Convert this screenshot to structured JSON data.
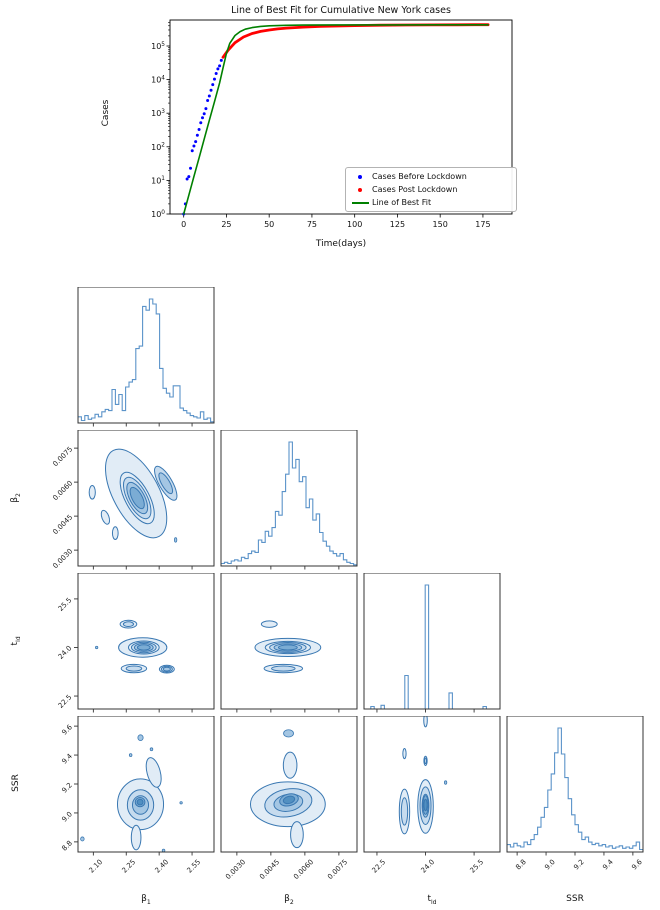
{
  "chart_data": [
    {
      "type": "line",
      "title": "Line of Best Fit for Cumulative New York cases",
      "xlabel": "Time(days)",
      "ylabel": "Cases",
      "x_ticks": [
        0,
        25,
        50,
        75,
        100,
        125,
        150,
        175
      ],
      "y_scale": "log",
      "y_tick_exponents": [
        0,
        1,
        2,
        3,
        4,
        5
      ],
      "xlim": [
        -8,
        192
      ],
      "ylim_log_decades": [
        0,
        5.77
      ],
      "legend": {
        "position": "lower right",
        "items": [
          {
            "label": "Cases Before Lockdown",
            "color": "#0000ff",
            "marker": "dot"
          },
          {
            "label": "Cases Post Lockdown",
            "color": "#ff0000",
            "marker": "dot"
          },
          {
            "label": "Line of Best Fit",
            "color": "#008000",
            "marker": "line"
          }
        ]
      },
      "series": [
        {
          "name": "Cases Before Lockdown",
          "style": "scatter",
          "color": "#0000ff",
          "x": [
            0,
            1,
            2,
            3,
            4,
            5,
            6,
            7,
            8,
            9,
            10,
            11,
            12,
            13,
            14,
            15,
            16,
            17,
            18,
            19,
            20,
            21,
            22
          ],
          "y": [
            1,
            2,
            11,
            13,
            23,
            76,
            106,
            142,
            221,
            328,
            521,
            733,
            967,
            1374,
            2382,
            3254,
            4812,
            7102,
            10356,
            15168,
            20875,
            25665,
            37258
          ]
        },
        {
          "name": "Cases Post Lockdown",
          "style": "scatter-dense",
          "color": "#ff0000",
          "x": [
            23,
            26,
            30,
            35,
            40,
            45,
            50,
            55,
            60,
            70,
            80,
            90,
            100,
            115,
            130,
            145,
            160,
            170,
            178
          ],
          "y": [
            46000,
            75000,
            125000,
            185000,
            235000,
            272000,
            300000,
            322000,
            340000,
            365000,
            382000,
            395000,
            405000,
            415000,
            421000,
            425000,
            428000,
            430000,
            431000
          ]
        },
        {
          "name": "Line of Best Fit",
          "style": "line",
          "color": "#008000",
          "x": [
            0,
            3,
            6,
            9,
            12,
            15,
            18,
            21,
            23,
            25,
            27,
            30,
            33,
            36,
            40,
            45,
            50,
            60,
            70,
            90,
            120,
            150,
            178
          ],
          "y": [
            1,
            3.6,
            13,
            47,
            170,
            610,
            2200,
            8000,
            22000,
            60000,
            120000,
            205000,
            268000,
            316000,
            352000,
            382000,
            398000,
            413000,
            419000,
            424000,
            426000,
            427000,
            427000
          ]
        }
      ]
    },
    {
      "type": "corner",
      "parameters": [
        {
          "label_base": "β",
          "label_sub": "1",
          "ticks": [
            "2.10",
            "2.25",
            "2.40",
            "2.55"
          ],
          "tick_values": [
            2.1,
            2.25,
            2.4,
            2.55
          ],
          "range": [
            2.03,
            2.65
          ]
        },
        {
          "label_base": "β",
          "label_sub": "2",
          "ticks": [
            "0.0030",
            "0.0045",
            "0.0060",
            "0.0075"
          ],
          "tick_values": [
            0.003,
            0.0045,
            0.006,
            0.0075
          ],
          "range": [
            0.0023,
            0.0083
          ]
        },
        {
          "label_base": "t",
          "label_sub": "ld",
          "ticks": [
            "22.5",
            "24.0",
            "25.5"
          ],
          "tick_values": [
            22.5,
            24.0,
            25.5
          ],
          "range": [
            22.1,
            26.3
          ]
        },
        {
          "label_base": "SSR",
          "label_sub": "",
          "ticks": [
            "8.8",
            "9.0",
            "9.2",
            "9.4",
            "9.6"
          ],
          "tick_values": [
            8.8,
            9.0,
            9.2,
            9.4,
            9.6
          ],
          "range": [
            8.73,
            9.67
          ]
        }
      ],
      "histograms": {
        "b1": [
          0.05,
          0.02,
          0.06,
          0.03,
          0.04,
          0.07,
          0.05,
          0.09,
          0.11,
          0.1,
          0.27,
          0.15,
          0.23,
          0.1,
          0.29,
          0.33,
          0.35,
          0.6,
          0.62,
          0.94,
          0.91,
          1.0,
          0.96,
          0.88,
          0.44,
          0.28,
          0.24,
          0.21,
          0.3,
          0.3,
          0.12,
          0.1,
          0.08,
          0.06,
          0.05,
          0.04,
          0.09,
          0.03,
          0.04,
          0.01
        ],
        "b2": [
          0.02,
          0.03,
          0.02,
          0.04,
          0.05,
          0.04,
          0.07,
          0.06,
          0.1,
          0.12,
          0.11,
          0.21,
          0.19,
          0.28,
          0.24,
          0.31,
          0.44,
          0.41,
          0.6,
          0.74,
          1.0,
          0.79,
          0.86,
          0.68,
          0.72,
          0.47,
          0.54,
          0.37,
          0.42,
          0.27,
          0.2,
          0.16,
          0.12,
          0.1,
          0.08,
          0.1,
          0.05,
          0.03,
          0.02,
          0.01
        ],
        "tld": [
          0,
          0,
          0.02,
          0,
          0,
          0.03,
          0,
          0,
          0,
          0,
          0,
          0,
          0.27,
          0,
          0,
          0,
          0,
          0,
          1.0,
          0,
          0,
          0,
          0,
          0,
          0,
          0.13,
          0,
          0,
          0,
          0,
          0,
          0,
          0,
          0,
          0,
          0.02,
          0,
          0,
          0,
          0
        ],
        "ssr": [
          0.06,
          0.04,
          0.07,
          0.05,
          0.04,
          0.08,
          0.06,
          0.1,
          0.14,
          0.2,
          0.28,
          0.36,
          0.5,
          0.63,
          0.8,
          1.0,
          0.79,
          0.6,
          0.43,
          0.3,
          0.22,
          0.16,
          0.1,
          0.12,
          0.08,
          0.06,
          0.07,
          0.05,
          0.06,
          0.04,
          0.05,
          0.03,
          0.04,
          0.05,
          0.03,
          0.04,
          0.03,
          0.05,
          0.08,
          0.02
        ]
      },
      "contours": {
        "b2_b1": [
          [
            2.295,
            0.0055,
            0.105,
            0.00215,
            -28,
            1,
            0
          ],
          [
            2.3,
            0.0053,
            0.055,
            0.00125,
            -28,
            4,
            0
          ],
          [
            2.43,
            0.00595,
            0.03,
            0.00085,
            -30,
            2,
            1
          ],
          [
            2.095,
            0.00555,
            0.014,
            0.0003,
            0,
            1,
            0
          ],
          [
            2.155,
            0.00445,
            0.016,
            0.00032,
            -20,
            1,
            0
          ],
          [
            2.2,
            0.00375,
            0.013,
            0.00028,
            0,
            1,
            0
          ],
          [
            2.475,
            0.00345,
            0.005,
            0.0001,
            0,
            0,
            0
          ]
        ],
        "tld_b1": [
          [
            2.115,
            24.0,
            0.005,
            0.015,
            0,
            0,
            0
          ],
          [
            2.325,
            24.0,
            0.11,
            0.3,
            0,
            1,
            0
          ],
          [
            2.33,
            24.0,
            0.07,
            0.2,
            0,
            4,
            0
          ],
          [
            2.26,
            24.72,
            0.038,
            0.12,
            0,
            2,
            0
          ],
          [
            2.285,
            23.35,
            0.058,
            0.13,
            0,
            2,
            0
          ],
          [
            2.435,
            23.33,
            0.034,
            0.12,
            0,
            3,
            0
          ]
        ],
        "tld_b2": [
          [
            0.00443,
            24.72,
            0.00035,
            0.1,
            0,
            1,
            0
          ],
          [
            0.00525,
            24.0,
            0.00145,
            0.28,
            0,
            1,
            0
          ],
          [
            0.00525,
            24.0,
            0.001,
            0.19,
            0,
            4,
            0
          ],
          [
            0.00505,
            23.35,
            0.00085,
            0.13,
            0,
            2,
            0
          ]
        ],
        "ssr_b1": [
          [
            2.315,
            9.06,
            0.105,
            0.175,
            0,
            1,
            0
          ],
          [
            2.375,
            9.28,
            0.03,
            0.105,
            -15,
            1,
            0
          ],
          [
            2.295,
            8.83,
            0.022,
            0.085,
            0,
            1,
            0
          ],
          [
            2.315,
            9.055,
            0.06,
            0.105,
            0,
            2,
            1
          ],
          [
            2.313,
            9.075,
            0.022,
            0.032,
            0,
            2,
            3
          ],
          [
            2.315,
            9.52,
            0.012,
            0.02,
            0,
            0,
            0
          ],
          [
            2.27,
            9.4,
            0.006,
            0.01,
            0,
            0,
            0
          ],
          [
            2.365,
            9.44,
            0.006,
            0.01,
            0,
            0,
            0
          ],
          [
            2.05,
            8.82,
            0.008,
            0.014,
            0,
            0,
            0
          ],
          [
            2.5,
            9.07,
            0.004,
            0.008,
            0,
            0,
            0
          ],
          [
            2.42,
            8.74,
            0.006,
            0.01,
            0,
            0,
            0
          ]
        ],
        "ssr_b2": [
          [
            0.00525,
            9.06,
            0.00165,
            0.155,
            0,
            1,
            0
          ],
          [
            0.00535,
            9.33,
            0.0003,
            0.09,
            0,
            1,
            0
          ],
          [
            0.00528,
            9.55,
            0.00022,
            0.025,
            0,
            0,
            0
          ],
          [
            0.00565,
            8.85,
            0.00028,
            0.09,
            0,
            1,
            0
          ],
          [
            0.00527,
            9.07,
            0.00105,
            0.095,
            -10,
            2,
            1
          ],
          [
            0.0053,
            9.09,
            0.00042,
            0.04,
            -15,
            2,
            3
          ]
        ],
        "ssr_tld": [
          [
            23.35,
            9.01,
            0.16,
            0.155,
            0,
            2,
            0
          ],
          [
            24.0,
            9.045,
            0.24,
            0.185,
            0,
            1,
            0
          ],
          [
            24.0,
            9.05,
            0.17,
            0.13,
            0,
            2,
            1
          ],
          [
            24.0,
            9.055,
            0.08,
            0.065,
            0,
            2,
            3
          ],
          [
            23.35,
            9.41,
            0.05,
            0.035,
            0,
            1,
            0
          ],
          [
            24.0,
            9.36,
            0.05,
            0.032,
            0,
            2,
            0
          ],
          [
            24.0,
            9.64,
            0.055,
            0.045,
            0,
            1,
            0
          ],
          [
            24.62,
            9.21,
            0.02,
            0.012,
            0,
            0,
            0
          ]
        ]
      },
      "panels": [
        {
          "r": 0,
          "c": 0,
          "type": "hist",
          "param": 0,
          "hist": "b1"
        },
        {
          "r": 1,
          "c": 0,
          "type": "contour",
          "xparam": 0,
          "yparam": 1,
          "blobs": "b2_b1"
        },
        {
          "r": 1,
          "c": 1,
          "type": "hist",
          "param": 1,
          "hist": "b2"
        },
        {
          "r": 2,
          "c": 0,
          "type": "contour",
          "xparam": 0,
          "yparam": 2,
          "blobs": "tld_b1"
        },
        {
          "r": 2,
          "c": 1,
          "type": "contour",
          "xparam": 1,
          "yparam": 2,
          "blobs": "tld_b2"
        },
        {
          "r": 2,
          "c": 2,
          "type": "hist",
          "param": 2,
          "hist": "tld"
        },
        {
          "r": 3,
          "c": 0,
          "type": "contour",
          "xparam": 0,
          "yparam": 3,
          "blobs": "ssr_b1"
        },
        {
          "r": 3,
          "c": 1,
          "type": "contour",
          "xparam": 1,
          "yparam": 3,
          "blobs": "ssr_b2"
        },
        {
          "r": 3,
          "c": 2,
          "type": "contour",
          "xparam": 2,
          "yparam": 3,
          "blobs": "ssr_tld"
        },
        {
          "r": 3,
          "c": 3,
          "type": "hist",
          "param": 3,
          "hist": "ssr"
        }
      ],
      "style": {
        "hist_color": "#5b93c9",
        "contour_stroke": "#3a78b2",
        "contour_fills": [
          "#e1ecf6",
          "#c6dbee",
          "#a4c6e3",
          "#7bacd4",
          "#5290c1"
        ],
        "spine_color": "#333333"
      }
    }
  ]
}
